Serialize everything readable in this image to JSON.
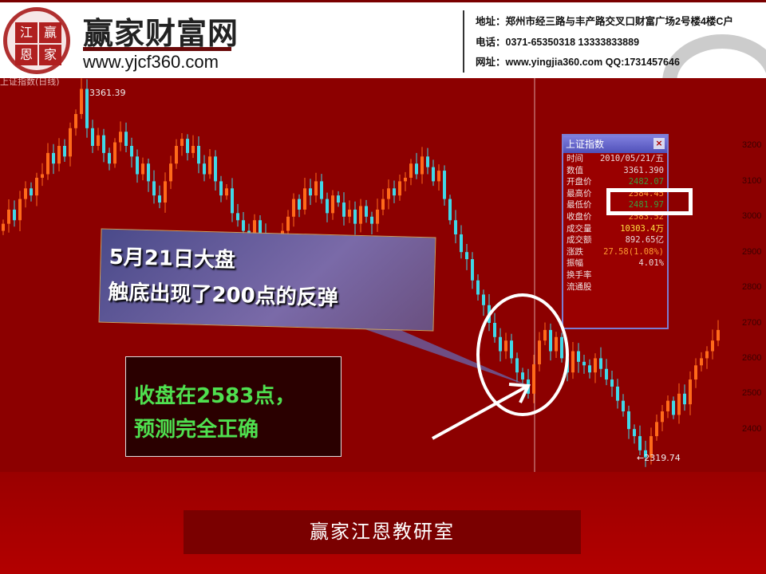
{
  "header": {
    "logo_chars": [
      "江",
      "赢",
      "恩",
      "家"
    ],
    "brand": "赢家财富网",
    "site": "www.yjcf360.com",
    "address": "地址：郑州市经三路与丰产路交叉口财富广场2号楼4楼C户",
    "phone": "电话：0371-65350318  13333833889",
    "web": "网址：www.yingjia360.com  QQ:1731457646"
  },
  "chart": {
    "title": "上证指数(日线)",
    "high_label": "3361.39",
    "low_label": "←2319.74",
    "y_ticks": [
      "3200",
      "3100",
      "3000",
      "2900",
      "2800",
      "2700",
      "2600",
      "2500",
      "2400"
    ]
  },
  "popup": {
    "title": "上证指数",
    "close_icon": "close-icon",
    "rows": [
      {
        "k": "时间",
        "v": "2010/05/21/五",
        "c": "#e8d8d8"
      },
      {
        "k": "数值",
        "v": "3361.390",
        "c": "#e8d8d8"
      },
      {
        "k": "开盘价",
        "v": "2482.07",
        "c": "#3c9a3c"
      },
      {
        "k": "最高价",
        "v": "2584.45",
        "c": "#ff9a30"
      },
      {
        "k": "最低价",
        "v": "2481.97",
        "c": "#3c9a3c"
      },
      {
        "k": "收盘价",
        "v": "2583.52",
        "c": "#ff9a30"
      },
      {
        "k": "成交量",
        "v": "10303.4万",
        "c": "#ffe040"
      },
      {
        "k": "成交额",
        "v": "892.65亿",
        "c": "#e8d8d8"
      },
      {
        "k": "涨跌",
        "v": "27.58(1.08%)",
        "c": "#ff9a30"
      },
      {
        "k": "振幅",
        "v": "4.01%",
        "c": "#e8d8d8"
      },
      {
        "k": "换手率",
        "v": "",
        "c": "#e8d8d8"
      },
      {
        "k": "流通股",
        "v": "",
        "c": "#e8d8d8"
      }
    ]
  },
  "callout": {
    "line1": "5月21日大盘",
    "line2": "触底出现了200点的反弹"
  },
  "note": {
    "line1": "收盘在2583点，",
    "line2": "预测完全正确"
  },
  "footer": {
    "banner": "赢家江恩教研室"
  },
  "colors": {
    "up": "#ff6a1a",
    "down": "#40d8e8",
    "background": "#8c0000"
  },
  "chart_data": {
    "type": "candlestick",
    "ylim": [
      2319.74,
      3361.39
    ],
    "closes": [
      2980,
      3020,
      2990,
      3050,
      3080,
      3060,
      3110,
      3120,
      3180,
      3150,
      3200,
      3170,
      3250,
      3290,
      3361,
      3250,
      3200,
      3230,
      3180,
      3150,
      3210,
      3240,
      3200,
      3170,
      3120,
      3150,
      3100,
      3060,
      3040,
      3100,
      3150,
      3200,
      3220,
      3180,
      3200,
      3150,
      3120,
      3170,
      3100,
      3060,
      3080,
      3010,
      2990,
      2960,
      2930,
      2990,
      2950,
      2900,
      2880,
      2920,
      2960,
      3000,
      3050,
      3020,
      3080,
      3060,
      3100,
      3050,
      3010,
      3060,
      3040,
      3000,
      3020,
      2980,
      3030,
      3000,
      2980,
      3020,
      3050,
      3080,
      3060,
      3100,
      3110,
      3150,
      3120,
      3170,
      3140,
      3100,
      3130,
      3050,
      2990,
      2950,
      2900,
      2880,
      2820,
      2780,
      2750,
      2700,
      2660,
      2620,
      2650,
      2600,
      2560,
      2540,
      2500,
      2583,
      2650,
      2680,
      2620,
      2660,
      2600,
      2560,
      2620,
      2590,
      2580,
      2560,
      2600,
      2570,
      2540,
      2520,
      2480,
      2450,
      2400,
      2380,
      2340,
      2320,
      2380,
      2420,
      2450,
      2480,
      2440,
      2500,
      2470,
      2540,
      2580,
      2600,
      2620,
      2650,
      2680
    ]
  }
}
